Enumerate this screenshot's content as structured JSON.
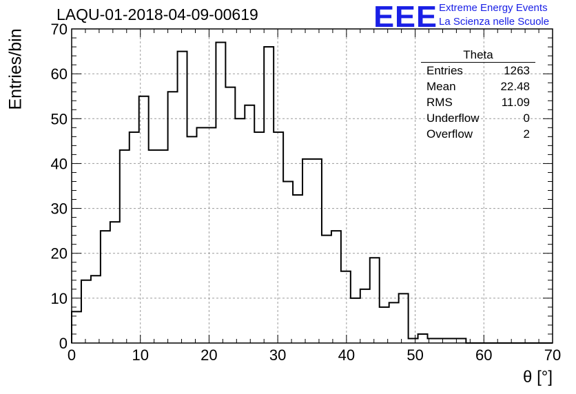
{
  "header": {
    "title": "LAQU-01-2018-04-09-00619"
  },
  "logo": {
    "mark": "EEE",
    "line1": "Extreme Energy Events",
    "line2": "La Scienza nelle Scuole",
    "color": "#1a20e6"
  },
  "stats_box": {
    "title": "Theta",
    "rows": [
      {
        "label": "Entries",
        "value": "1263"
      },
      {
        "label": "Mean",
        "value": "22.48"
      },
      {
        "label": "RMS",
        "value": "11.09"
      },
      {
        "label": "Underflow",
        "value": "0"
      },
      {
        "label": "Overflow",
        "value": "2"
      }
    ]
  },
  "chart_data": {
    "type": "bar",
    "histogram": true,
    "title": "LAQU-01-2018-04-09-00619",
    "xlabel": "θ [°]",
    "ylabel": "Entries/bin",
    "xlim": [
      0,
      70
    ],
    "ylim": [
      0,
      70
    ],
    "bin_width": 1.4,
    "x_ticks": [
      "0",
      "10",
      "20",
      "30",
      "40",
      "50",
      "60",
      "70"
    ],
    "y_ticks": [
      "0",
      "10",
      "20",
      "30",
      "40",
      "50",
      "60",
      "70"
    ],
    "grid": true,
    "values": [
      7,
      14,
      15,
      25,
      27,
      43,
      47,
      55,
      43,
      43,
      56,
      65,
      46,
      48,
      48,
      67,
      57,
      50,
      53,
      47,
      66,
      47,
      36,
      33,
      41,
      41,
      24,
      25,
      16,
      10,
      12,
      19,
      8,
      9,
      11,
      1,
      2,
      1,
      1,
      1,
      1,
      0,
      0,
      0,
      0,
      0,
      0,
      0,
      0,
      0
    ],
    "line_color": "#000000"
  }
}
